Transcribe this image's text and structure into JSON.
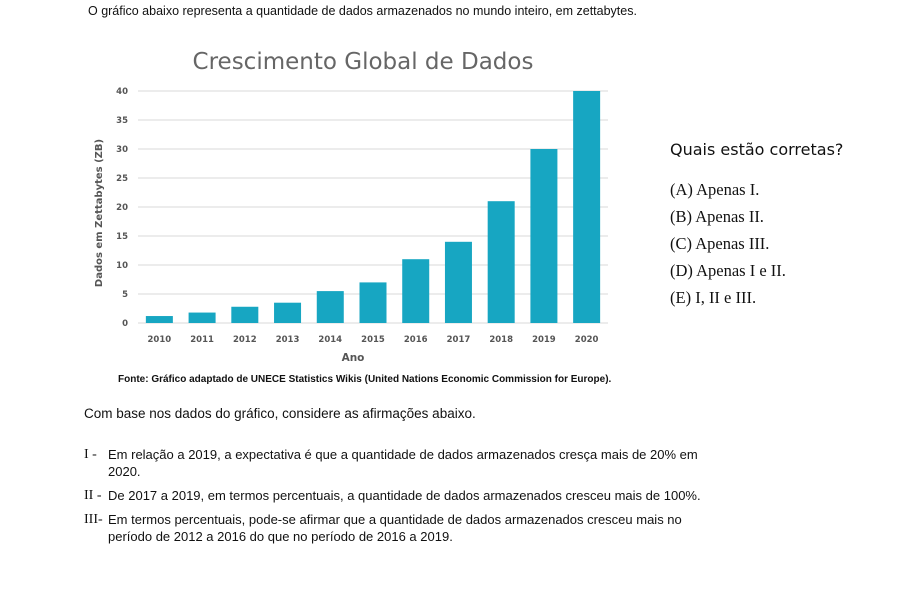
{
  "intro": "O gráfico abaixo representa a quantidade de dados armazenados no mundo inteiro, em zettabytes.",
  "source": "Fonte: Gráfico adaptado de UNECE Statistics Wikis (United Nations Economic Commission for Europe).",
  "question": "Quais estão corretas?",
  "options": [
    "(A) Apenas I.",
    "(B) Apenas II.",
    "(C) Apenas III.",
    "(D) Apenas I e II.",
    "(E) I, II e III."
  ],
  "lead": "Com base nos dados do gráfico, considere as afirmações abaixo.",
  "statements": [
    {
      "num": "I -",
      "text": "Em relação a 2019, a expectativa é que a quantidade de dados armazenados cresça mais de 20% em 2020."
    },
    {
      "num": "II -",
      "text": "De 2017 a 2019, em termos percentuais, a quantidade de dados armazenados cresceu mais de 100%."
    },
    {
      "num": "III-",
      "text": "Em termos percentuais, pode-se afirmar que a quantidade de dados armazenados cresceu mais no período de 2012 a 2016 do que no período de 2016 a 2019."
    }
  ],
  "chart_data": {
    "type": "bar",
    "title": "Crescimento Global de Dados",
    "xlabel": "Ano",
    "ylabel": "Dados em Zettabytes (ZB)",
    "categories": [
      "2010",
      "2011",
      "2012",
      "2013",
      "2014",
      "2015",
      "2016",
      "2017",
      "2018",
      "2019",
      "2020"
    ],
    "values": [
      1.2,
      1.8,
      2.8,
      3.5,
      5.5,
      7,
      11,
      14,
      21,
      30,
      40
    ],
    "ylim": [
      0,
      40
    ],
    "yticks": [
      0,
      5,
      10,
      15,
      20,
      25,
      30,
      35,
      40
    ],
    "grid": true,
    "legend": "none",
    "bar_color": "#17a6c2"
  }
}
